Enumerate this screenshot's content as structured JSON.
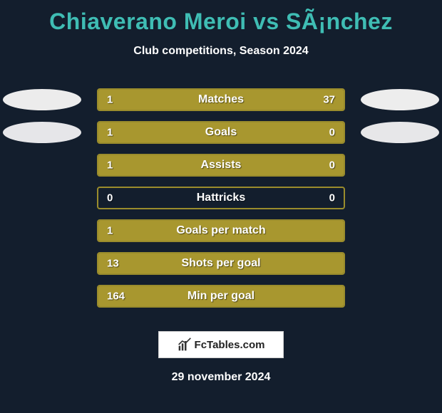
{
  "title": "Chiaverano Meroi vs SÃ¡nchez",
  "subtitle": "Club competitions, Season 2024",
  "footer_date": "29 november 2024",
  "watermark_text": "FcTables.com",
  "colors": {
    "background": "#131e2d",
    "title": "#3fbdb4",
    "text": "#ffffff",
    "bar_border": "#9a8c2c",
    "bar_fill": "#a8972f",
    "oval_left_1": "#ececec",
    "oval_left_2": "#e6e6e9",
    "oval_right_1": "#ededed",
    "oval_right_2": "#e7e7e9"
  },
  "rows": [
    {
      "label": "Matches",
      "left_val": "1",
      "right_val": "37",
      "left_pct": 18,
      "right_pct": 82,
      "show_ovals": true
    },
    {
      "label": "Goals",
      "left_val": "1",
      "right_val": "0",
      "left_pct": 76,
      "right_pct": 24,
      "show_ovals": true
    },
    {
      "label": "Assists",
      "left_val": "1",
      "right_val": "0",
      "left_pct": 76,
      "right_pct": 24,
      "show_ovals": false
    },
    {
      "label": "Hattricks",
      "left_val": "0",
      "right_val": "0",
      "left_pct": 0,
      "right_pct": 0,
      "show_ovals": false
    },
    {
      "label": "Goals per match",
      "left_val": "1",
      "right_val": "",
      "left_pct": 100,
      "right_pct": 0,
      "show_ovals": false
    },
    {
      "label": "Shots per goal",
      "left_val": "13",
      "right_val": "",
      "left_pct": 100,
      "right_pct": 0,
      "show_ovals": false
    },
    {
      "label": "Min per goal",
      "left_val": "164",
      "right_val": "",
      "left_pct": 100,
      "right_pct": 0,
      "show_ovals": false
    }
  ]
}
